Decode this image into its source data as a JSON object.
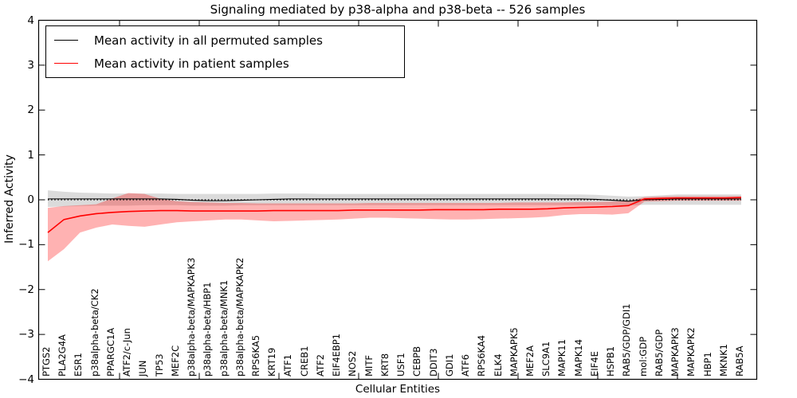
{
  "chart_data": {
    "type": "line",
    "title": "Signaling mediated by p38-alpha and p38-beta -- 526 samples",
    "xlabel": "Cellular Entities",
    "ylabel": "Inferred Activity",
    "ylim": [
      -4,
      4
    ],
    "grid": false,
    "legend_position": "upper left",
    "ytick_values": [
      4,
      3,
      2,
      1,
      0,
      -1,
      -2,
      -3,
      -4
    ],
    "ytick_labels": [
      "4",
      "3",
      "2",
      "1",
      "0",
      "−1",
      "−2",
      "−3",
      "−4"
    ],
    "zero_line": {
      "value": 0,
      "style": "dotted",
      "color": "#000000"
    },
    "categories": [
      "PTGS2",
      "PLA2G4A",
      "ESR1",
      "p38alpha-beta/CK2",
      "PPARGC1A",
      "ATF2/c-Jun",
      "JUN",
      "TP53",
      "MEF2C",
      "p38alpha-beta/MAPKAPK3",
      "p38alpha-beta/HBP1",
      "p38alpha-beta/MNK1",
      "p38alpha-beta/MAPKAPK2",
      "RPS6KA5",
      "KRT19",
      "ATF1",
      "CREB1",
      "ATF2",
      "EIF4EBP1",
      "NOS2",
      "MITF",
      "KRT8",
      "USF1",
      "CEBPB",
      "DDIT3",
      "GDI1",
      "ATF6",
      "RPS6KA4",
      "ELK4",
      "MAPKAPK5",
      "MEF2A",
      "SLC9A1",
      "MAPK11",
      "MAPK14",
      "EIF4E",
      "HSPB1",
      "RAB5/GDP/GDI1",
      "mol:GDP",
      "RAB5/GDP",
      "MAPKAPK3",
      "MAPKAPK2",
      "HBP1",
      "MKNK1",
      "RAB5A"
    ],
    "series": [
      {
        "name": "Mean activity in all permuted samples",
        "color": "#000000",
        "line_width": 1.1,
        "band_color": "#000000",
        "band_opacity": 0.14,
        "values": [
          0.02,
          0.02,
          0.02,
          0.02,
          0.02,
          0.02,
          0.02,
          0.02,
          0.01,
          -0.01,
          -0.02,
          -0.02,
          -0.01,
          0.0,
          0.01,
          0.02,
          0.02,
          0.02,
          0.02,
          0.02,
          0.02,
          0.02,
          0.02,
          0.02,
          0.02,
          0.02,
          0.02,
          0.02,
          0.02,
          0.02,
          0.02,
          0.02,
          0.02,
          0.02,
          0.01,
          -0.01,
          -0.03,
          0.0,
          0.01,
          0.02,
          0.02,
          0.02,
          0.02,
          0.02
        ],
        "band_high": [
          0.21,
          0.18,
          0.16,
          0.15,
          0.14,
          0.14,
          0.14,
          0.14,
          0.13,
          0.13,
          0.13,
          0.13,
          0.13,
          0.13,
          0.14,
          0.14,
          0.14,
          0.13,
          0.13,
          0.13,
          0.13,
          0.13,
          0.13,
          0.13,
          0.13,
          0.13,
          0.13,
          0.13,
          0.13,
          0.13,
          0.13,
          0.13,
          0.12,
          0.12,
          0.11,
          0.09,
          0.07,
          0.08,
          0.1,
          0.12,
          0.12,
          0.12,
          0.12,
          0.12
        ],
        "band_low": [
          -0.16,
          -0.15,
          -0.14,
          -0.13,
          -0.13,
          -0.13,
          -0.12,
          -0.12,
          -0.12,
          -0.13,
          -0.13,
          -0.13,
          -0.12,
          -0.12,
          -0.12,
          -0.12,
          -0.12,
          -0.12,
          -0.12,
          -0.12,
          -0.12,
          -0.12,
          -0.12,
          -0.12,
          -0.12,
          -0.12,
          -0.12,
          -0.12,
          -0.12,
          -0.12,
          -0.12,
          -0.12,
          -0.12,
          -0.12,
          -0.12,
          -0.12,
          -0.13,
          -0.11,
          -0.11,
          -0.11,
          -0.11,
          -0.11,
          -0.11,
          -0.11
        ]
      },
      {
        "name": "Mean activity in patient samples",
        "color": "#ff0000",
        "line_width": 1.6,
        "band_color": "#ff0000",
        "band_opacity": 0.3,
        "values": [
          -0.73,
          -0.44,
          -0.36,
          -0.31,
          -0.28,
          -0.26,
          -0.25,
          -0.24,
          -0.24,
          -0.25,
          -0.25,
          -0.25,
          -0.25,
          -0.25,
          -0.24,
          -0.24,
          -0.24,
          -0.24,
          -0.24,
          -0.23,
          -0.23,
          -0.23,
          -0.23,
          -0.23,
          -0.22,
          -0.22,
          -0.22,
          -0.22,
          -0.21,
          -0.21,
          -0.21,
          -0.2,
          -0.18,
          -0.17,
          -0.16,
          -0.15,
          -0.13,
          0.02,
          0.03,
          0.04,
          0.04,
          0.04,
          0.04,
          0.05
        ],
        "band_high": [
          -0.18,
          -0.14,
          -0.12,
          -0.1,
          0.03,
          0.15,
          0.13,
          0.02,
          -0.03,
          -0.05,
          -0.06,
          -0.07,
          -0.07,
          -0.08,
          -0.08,
          -0.08,
          -0.08,
          -0.08,
          -0.08,
          -0.08,
          -0.07,
          -0.07,
          -0.07,
          -0.07,
          -0.07,
          -0.07,
          -0.07,
          -0.07,
          -0.07,
          -0.06,
          -0.06,
          -0.06,
          -0.06,
          -0.05,
          -0.05,
          -0.04,
          -0.03,
          0.06,
          0.07,
          0.08,
          0.08,
          0.08,
          0.08,
          0.08
        ],
        "band_low": [
          -1.37,
          -1.1,
          -0.73,
          -0.62,
          -0.55,
          -0.58,
          -0.6,
          -0.55,
          -0.5,
          -0.48,
          -0.46,
          -0.44,
          -0.44,
          -0.46,
          -0.48,
          -0.47,
          -0.46,
          -0.45,
          -0.44,
          -0.42,
          -0.4,
          -0.4,
          -0.41,
          -0.42,
          -0.43,
          -0.44,
          -0.44,
          -0.43,
          -0.42,
          -0.41,
          -0.4,
          -0.38,
          -0.34,
          -0.32,
          -0.32,
          -0.33,
          -0.3,
          -0.04,
          -0.03,
          -0.02,
          -0.02,
          -0.02,
          -0.02,
          -0.02
        ]
      }
    ]
  }
}
